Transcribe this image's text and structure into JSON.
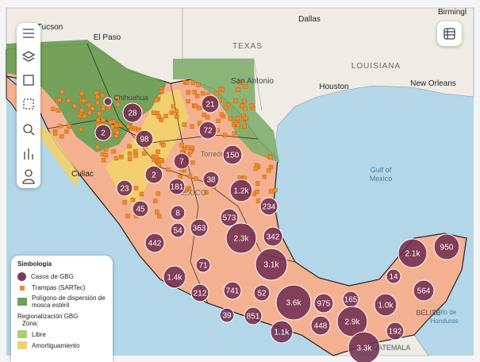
{
  "map_labels": [
    "Tucson",
    "El Paso",
    "Dallas",
    "Birmingl",
    "TEXAS",
    "LOUISIANA",
    "San Antonio",
    "Houston",
    "New Orleans",
    "Gulf of",
    "Mexico",
    "Chihuahua",
    "Culiac",
    "Torreón",
    "MÉXICO",
    "BELIZE",
    "Golfo de",
    "Honduras",
    "GUATEMALA"
  ],
  "clusters": [
    "28",
    "21",
    "72",
    "2",
    "98",
    "150",
    "7",
    "2",
    "38",
    "23",
    "181",
    "1.2k",
    "234",
    "45",
    "8",
    "573",
    "363",
    "54",
    "2.3k",
    "342",
    "442",
    "3.1k",
    "71",
    "2.1k",
    "950",
    "1.4k",
    "14",
    "212",
    "741",
    "52",
    "564",
    "3.6k",
    "975",
    "165",
    "1.0k",
    "39",
    "851",
    "448",
    "2.9k",
    "1.1k",
    "192",
    "3.3k"
  ],
  "legend": {
    "title": "Simbología",
    "items": [
      "Casos de GBG",
      "Trampas (SARTec)",
      "Polígono de dispersión de mosca estéril"
    ],
    "section": "Regionalización GBG",
    "zone_label": "Zona:",
    "zones": [
      "Libre",
      "Amortiguamiento"
    ]
  }
}
